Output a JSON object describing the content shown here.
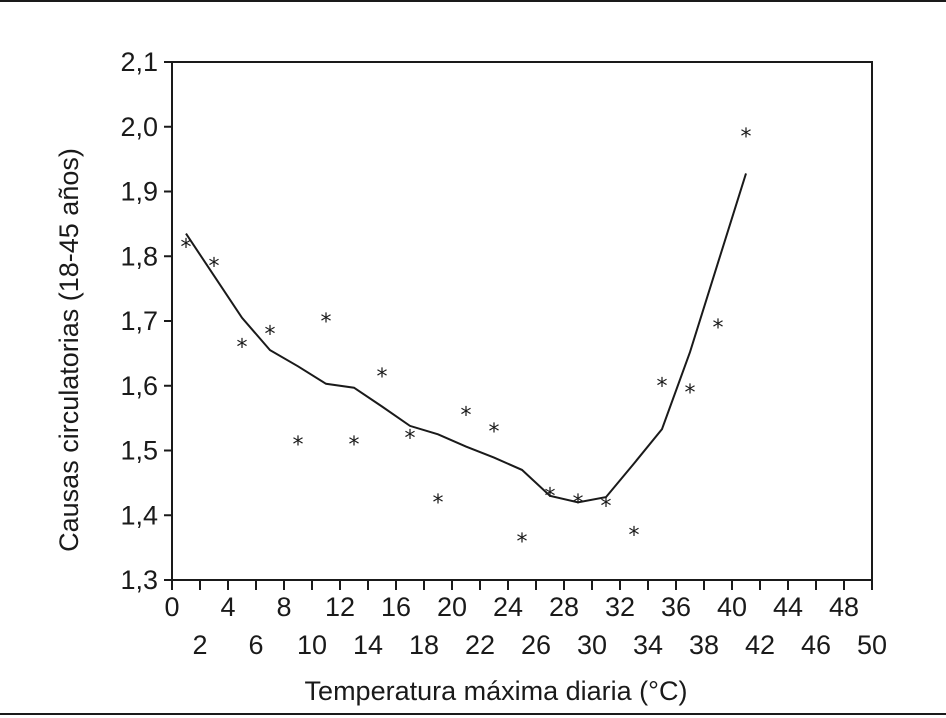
{
  "chart_data": {
    "type": "scatter",
    "xlabel": "Temperatura máxima diaria (°C)",
    "ylabel": "Causas circulatorias (18-45 años)",
    "xlim": [
      0,
      50
    ],
    "ylim": [
      1.3,
      2.1
    ],
    "grid": false,
    "x_ticks_top_row": [
      "0",
      "4",
      "8",
      "12",
      "16",
      "20",
      "24",
      "28",
      "32",
      "36",
      "40",
      "44",
      "48"
    ],
    "x_ticks_bottom_row": [
      "2",
      "6",
      "10",
      "14",
      "18",
      "22",
      "26",
      "30",
      "34",
      "38",
      "42",
      "46",
      "50"
    ],
    "y_ticks": [
      "1,3",
      "1,4",
      "1,5",
      "1,6",
      "1,7",
      "1,8",
      "1,9",
      "2,0",
      "2,1"
    ],
    "marker_symbol": "*",
    "observed": {
      "x": [
        1,
        3,
        5,
        7,
        9,
        11,
        13,
        15,
        17,
        19,
        21,
        23,
        25,
        27,
        29,
        31,
        33,
        35,
        37,
        39,
        41
      ],
      "y": [
        1.82,
        1.79,
        1.665,
        1.685,
        1.515,
        1.705,
        1.515,
        1.62,
        1.525,
        1.425,
        1.56,
        1.535,
        1.365,
        1.435,
        1.425,
        1.42,
        1.375,
        1.605,
        1.595,
        1.695,
        1.99
      ]
    },
    "fitted": {
      "x": [
        1,
        3,
        5,
        7,
        9,
        11,
        13,
        15,
        17,
        19,
        21,
        23,
        25,
        27,
        29,
        31,
        33,
        35,
        37,
        39,
        41
      ],
      "y": [
        1.835,
        1.77,
        1.705,
        1.655,
        1.63,
        1.603,
        1.597,
        1.568,
        1.538,
        1.525,
        1.506,
        1.489,
        1.47,
        1.43,
        1.42,
        1.428,
        1.48,
        1.533,
        1.652,
        1.79,
        1.928
      ]
    }
  }
}
